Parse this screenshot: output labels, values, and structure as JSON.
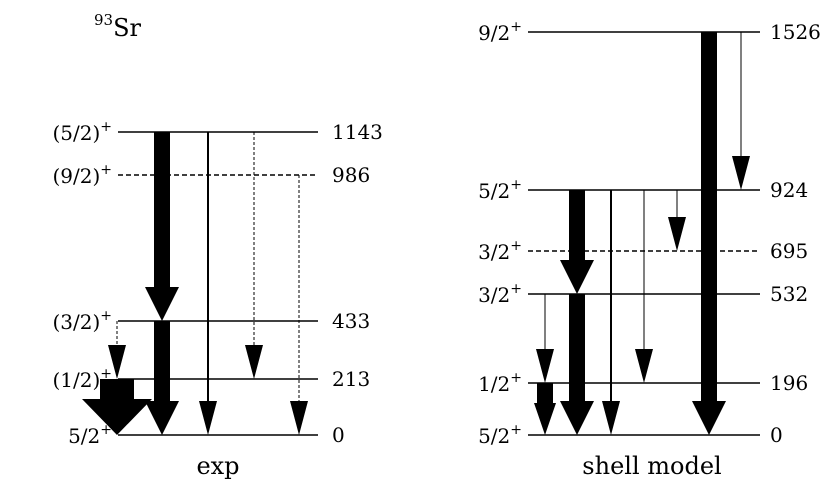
{
  "nucleus": {
    "mass": "93",
    "symbol": "Sr"
  },
  "panels": [
    {
      "id": "exp",
      "caption": "exp",
      "levels": [
        {
          "spin": "5/2",
          "parity": "+",
          "energy": "0",
          "dashed": false
        },
        {
          "spin": "(1/2)",
          "parity": "+",
          "energy": "213",
          "dashed": false
        },
        {
          "spin": "(3/2)",
          "parity": "+",
          "energy": "433",
          "dashed": false
        },
        {
          "spin": "(9/2)",
          "parity": "+",
          "energy": "986",
          "dashed": true
        },
        {
          "spin": "(5/2)",
          "parity": "+",
          "energy": "1143",
          "dashed": false
        }
      ],
      "transitions": [
        {
          "from": "1143",
          "to": "433",
          "width": "thick",
          "dashed": false
        },
        {
          "from": "1143",
          "to": "0",
          "width": "thin",
          "dashed": false
        },
        {
          "from": "1143",
          "to": "213",
          "width": "thin",
          "dashed": true
        },
        {
          "from": "986",
          "to": "0",
          "width": "thin",
          "dashed": true
        },
        {
          "from": "433",
          "to": "213",
          "width": "thin",
          "dashed": true
        },
        {
          "from": "433",
          "to": "0",
          "width": "thick",
          "dashed": false
        },
        {
          "from": "213",
          "to": "0",
          "width": "widest",
          "dashed": false
        }
      ]
    },
    {
      "id": "shell",
      "caption": "shell model",
      "levels": [
        {
          "spin": "5/2",
          "parity": "+",
          "energy": "0",
          "dashed": false
        },
        {
          "spin": "1/2",
          "parity": "+",
          "energy": "196",
          "dashed": false
        },
        {
          "spin": "3/2",
          "parity": "+",
          "energy": "532",
          "dashed": false
        },
        {
          "spin": "3/2",
          "parity": "+",
          "energy": "695",
          "dashed": true
        },
        {
          "spin": "5/2",
          "parity": "+",
          "energy": "924",
          "dashed": false
        },
        {
          "spin": "9/2",
          "parity": "+",
          "energy": "1526",
          "dashed": false
        }
      ],
      "transitions": [
        {
          "from": "1526",
          "to": "0",
          "width": "thick",
          "dashed": false
        },
        {
          "from": "1526",
          "to": "924",
          "width": "hair",
          "dashed": false
        },
        {
          "from": "924",
          "to": "532",
          "width": "thick",
          "dashed": false
        },
        {
          "from": "924",
          "to": "0",
          "width": "thin",
          "dashed": false
        },
        {
          "from": "924",
          "to": "196",
          "width": "hair",
          "dashed": false
        },
        {
          "from": "924",
          "to": "695",
          "width": "hair",
          "dashed": false
        },
        {
          "from": "532",
          "to": "196",
          "width": "hair",
          "dashed": false
        },
        {
          "from": "532",
          "to": "0",
          "width": "thick",
          "dashed": false
        },
        {
          "from": "196",
          "to": "0",
          "width": "medium",
          "dashed": false
        }
      ]
    }
  ]
}
